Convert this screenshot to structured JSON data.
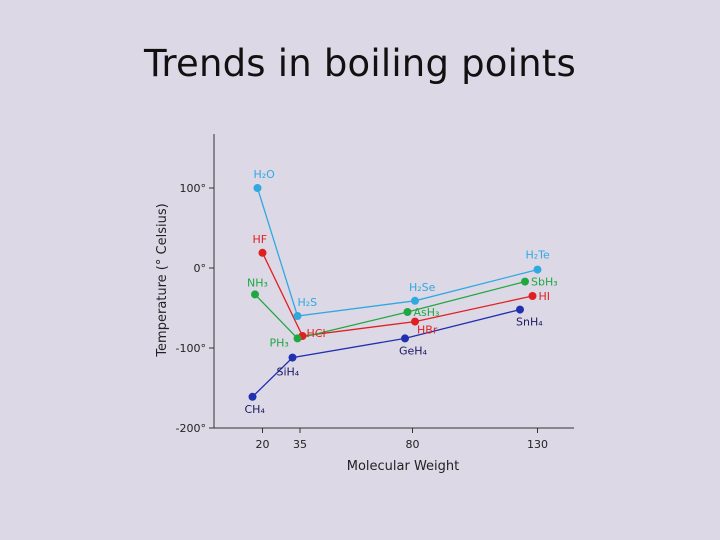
{
  "slide": {
    "title": "Trends in boiling points"
  },
  "chart_data": {
    "type": "line",
    "xlabel": "Molecular Weight",
    "ylabel": "Temperature (° Celsius)",
    "ylim": [
      -200,
      100
    ],
    "y_ticks": [
      {
        "value": 100,
        "label": "100°"
      },
      {
        "value": 0,
        "label": "0°"
      },
      {
        "value": -100,
        "label": "-100°"
      },
      {
        "value": -200,
        "label": "-200°"
      }
    ],
    "x_ticks": [
      {
        "value": 20,
        "label": "20"
      },
      {
        "value": 35,
        "label": "35"
      },
      {
        "value": 80,
        "label": "80"
      },
      {
        "value": 130,
        "label": "130"
      }
    ],
    "grid": false,
    "series": [
      {
        "color": "#2fa9e0",
        "points": [
          {
            "x": 18,
            "y": 100,
            "label": "H₂O"
          },
          {
            "x": 34,
            "y": -60,
            "label": "H₂S"
          },
          {
            "x": 81,
            "y": -41,
            "label": "H₂Se"
          },
          {
            "x": 130,
            "y": -2,
            "label": "H₂Te"
          }
        ]
      },
      {
        "color": "#e02020",
        "points": [
          {
            "x": 20,
            "y": 19,
            "label": "HF"
          },
          {
            "x": 36,
            "y": -85,
            "label": "HCl"
          },
          {
            "x": 81,
            "y": -67,
            "label": "HBr"
          },
          {
            "x": 128,
            "y": -35,
            "label": "HI"
          }
        ]
      },
      {
        "color": "#20a840",
        "points": [
          {
            "x": 17,
            "y": -33,
            "label": "NH₃"
          },
          {
            "x": 34,
            "y": -88,
            "label": "PH₃"
          },
          {
            "x": 78,
            "y": -55,
            "label": "AsH₃"
          },
          {
            "x": 125,
            "y": -17,
            "label": "SbH₃"
          }
        ]
      },
      {
        "color": "#2030b0",
        "points": [
          {
            "x": 16,
            "y": -161,
            "label": "CH₄"
          },
          {
            "x": 32,
            "y": -112,
            "label": "SiH₄"
          },
          {
            "x": 77,
            "y": -88,
            "label": "GeH₄"
          },
          {
            "x": 123,
            "y": -52,
            "label": "SnH₄"
          }
        ]
      }
    ]
  }
}
